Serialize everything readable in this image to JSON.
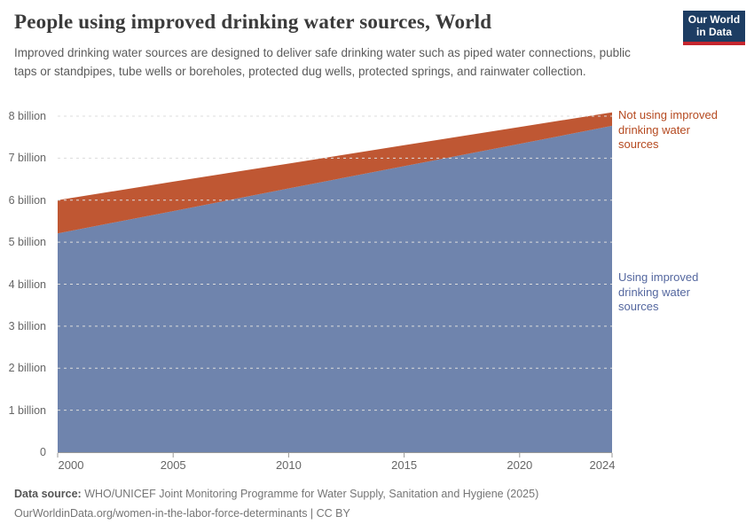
{
  "header": {
    "title": "People using improved drinking water sources, World",
    "subtitle": "Improved drinking water sources are designed to deliver safe drinking water such as piped water connections, public taps or standpipes, tube wells or boreholes, protected dug wells, protected springs, and rainwater collection.",
    "logo": {
      "line1": "Our World",
      "line2": "in Data",
      "bg_color": "#1d3d63",
      "accent_color": "#c5262e"
    }
  },
  "chart_data": {
    "type": "area",
    "stacked": true,
    "title": "People using improved drinking water sources, World",
    "xlabel": "",
    "ylabel": "",
    "x": [
      2000,
      2005,
      2010,
      2015,
      2020,
      2024
    ],
    "series": [
      {
        "name": "Using improved drinking water sources",
        "color": "#6f84ad",
        "label_color": "#54679f",
        "values": [
          5.21,
          5.74,
          6.28,
          6.81,
          7.34,
          7.77
        ]
      },
      {
        "name": "Not using improved drinking water sources",
        "color": "#bf5733",
        "label_color": "#b5491f",
        "values": [
          0.79,
          0.7,
          0.59,
          0.5,
          0.4,
          0.32
        ]
      }
    ],
    "xlim": [
      2000,
      2024
    ],
    "ylim": [
      0,
      8
    ],
    "grid": "horizontal-dashed",
    "legend_position": "right-annotations",
    "y_tick_labels": [
      "0",
      "1 billion",
      "2 billion",
      "3 billion",
      "4 billion",
      "5 billion",
      "6 billion",
      "7 billion",
      "8 billion"
    ],
    "x_tick_labels": [
      "2000",
      "2005",
      "2010",
      "2015",
      "2020",
      "2024"
    ]
  },
  "footer": {
    "source_label": "Data source:",
    "source_text": "WHO/UNICEF Joint Monitoring Programme for Water Supply, Sanitation and Hygiene (2025)",
    "citation": "OurWorldinData.org/women-in-the-labor-force-determinants | CC BY"
  }
}
